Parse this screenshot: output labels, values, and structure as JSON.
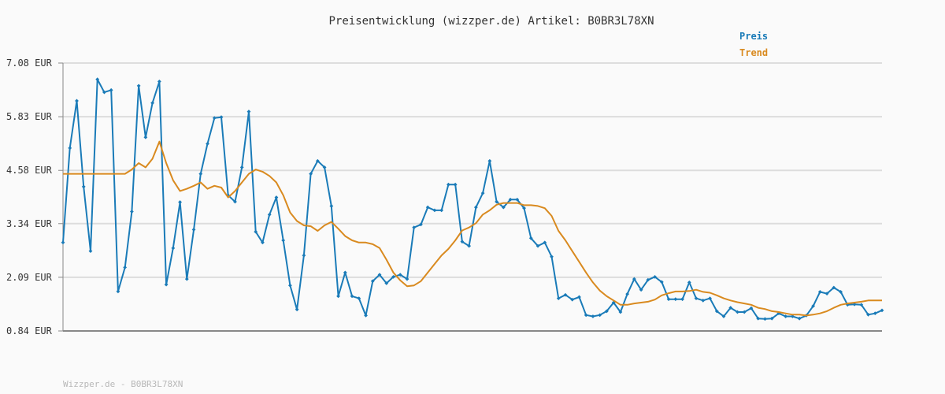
{
  "colors": {
    "background": "#fafafa",
    "grid": "#dddddd",
    "axis": "#888888",
    "preis": "#1a7bb8",
    "trend": "#d98a1f",
    "footer": "#b8b8b8"
  },
  "chart_data": {
    "type": "line",
    "title": "Preisentwicklung (wizzper.de) Artikel: B0BR3L78XN",
    "xlabel": "",
    "ylabel": "",
    "ylim": [
      0.84,
      7.08
    ],
    "yticks": [
      7.08,
      5.83,
      4.58,
      3.34,
      2.09,
      0.84
    ],
    "ytick_labels": [
      "7.08 EUR",
      "5.83 EUR",
      "4.58 EUR",
      "3.34 EUR",
      "2.09 EUR",
      "0.84 EUR"
    ],
    "grid": true,
    "legend_position": "top-right",
    "series": [
      {
        "name": "Preis",
        "color": "#1a7bb8",
        "markers": true,
        "values": [
          2.9,
          5.1,
          6.2,
          4.2,
          2.7,
          6.7,
          6.4,
          6.45,
          1.76,
          2.32,
          3.62,
          6.55,
          5.35,
          6.15,
          6.65,
          1.92,
          2.77,
          3.84,
          2.05,
          3.2,
          4.5,
          5.2,
          5.8,
          5.82,
          4.0,
          3.85,
          4.65,
          5.95,
          3.15,
          2.9,
          3.55,
          3.95,
          2.95,
          1.9,
          1.34,
          2.6,
          4.5,
          4.8,
          4.65,
          3.75,
          1.65,
          2.2,
          1.65,
          1.6,
          1.2,
          2.0,
          2.15,
          1.95,
          2.1,
          2.15,
          2.05,
          3.25,
          3.32,
          3.72,
          3.65,
          3.65,
          4.25,
          4.25,
          2.92,
          2.82,
          3.72,
          4.05,
          4.8,
          3.85,
          3.72,
          3.9,
          3.9,
          3.7,
          3.0,
          2.82,
          2.9,
          2.57,
          1.6,
          1.68,
          1.57,
          1.63,
          1.21,
          1.18,
          1.21,
          1.3,
          1.5,
          1.28,
          1.7,
          2.05,
          1.8,
          2.03,
          2.1,
          1.98,
          1.58,
          1.58,
          1.58,
          1.97,
          1.6,
          1.55,
          1.6,
          1.3,
          1.18,
          1.38,
          1.28,
          1.28,
          1.37,
          1.13,
          1.12,
          1.13,
          1.25,
          1.18,
          1.18,
          1.13,
          1.2,
          1.42,
          1.75,
          1.71,
          1.85,
          1.75,
          1.45,
          1.46,
          1.45,
          1.22,
          1.25,
          1.32
        ]
      },
      {
        "name": "Trend",
        "color": "#d98a1f",
        "markers": false,
        "values": [
          4.5,
          4.5,
          4.5,
          4.5,
          4.5,
          4.5,
          4.5,
          4.5,
          4.5,
          4.5,
          4.6,
          4.75,
          4.65,
          4.85,
          5.25,
          4.75,
          4.35,
          4.1,
          4.15,
          4.22,
          4.3,
          4.15,
          4.22,
          4.18,
          3.95,
          4.1,
          4.3,
          4.5,
          4.6,
          4.55,
          4.45,
          4.3,
          4.0,
          3.6,
          3.4,
          3.3,
          3.28,
          3.17,
          3.3,
          3.38,
          3.22,
          3.05,
          2.95,
          2.9,
          2.9,
          2.86,
          2.77,
          2.5,
          2.2,
          2.02,
          1.88,
          1.9,
          2.0,
          2.2,
          2.4,
          2.6,
          2.75,
          2.95,
          3.18,
          3.25,
          3.35,
          3.55,
          3.65,
          3.78,
          3.82,
          3.82,
          3.82,
          3.77,
          3.77,
          3.75,
          3.7,
          3.52,
          3.17,
          2.95,
          2.7,
          2.45,
          2.2,
          1.97,
          1.78,
          1.65,
          1.55,
          1.45,
          1.45,
          1.48,
          1.5,
          1.52,
          1.57,
          1.67,
          1.72,
          1.76,
          1.76,
          1.77,
          1.8,
          1.75,
          1.73,
          1.67,
          1.6,
          1.55,
          1.51,
          1.48,
          1.45,
          1.38,
          1.35,
          1.3,
          1.28,
          1.25,
          1.22,
          1.22,
          1.2,
          1.22,
          1.25,
          1.3,
          1.38,
          1.45,
          1.48,
          1.5,
          1.52,
          1.55,
          1.55,
          1.55
        ]
      }
    ]
  },
  "footer": {
    "text": "Wizzper.de - B0BR3L78XN"
  }
}
